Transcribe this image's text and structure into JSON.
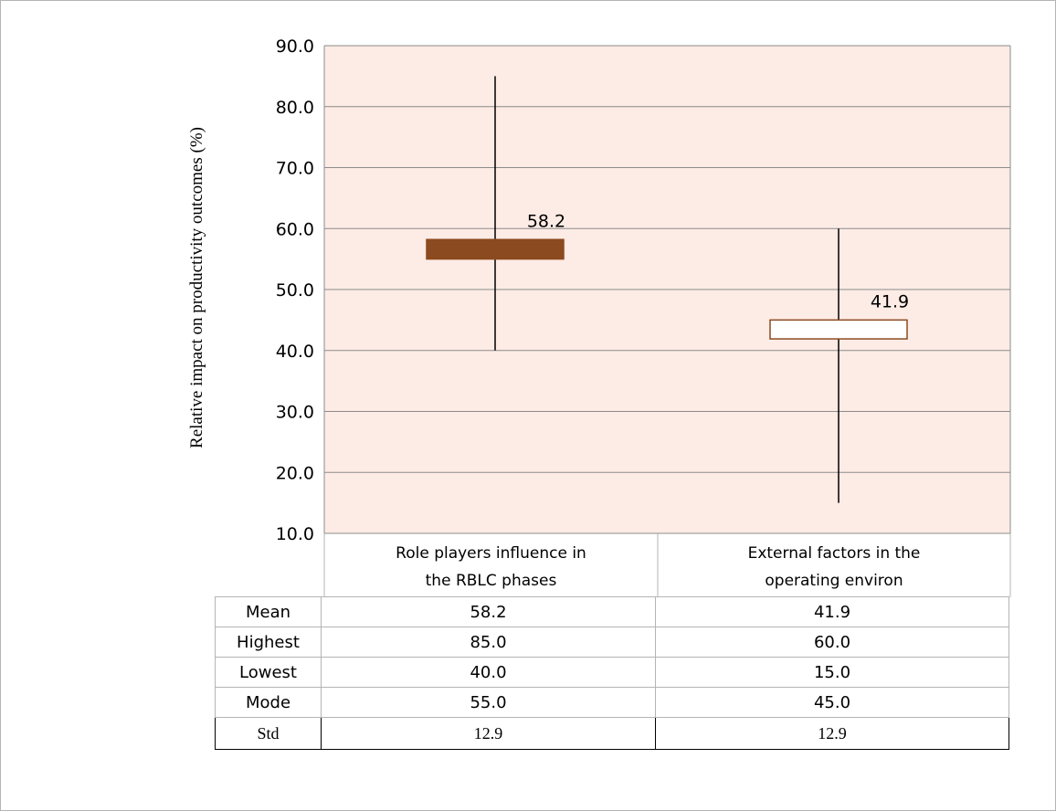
{
  "chart_data": {
    "type": "box",
    "ylabel": "Relative impact on productivity outcomes (%)",
    "ylim": [
      10,
      90
    ],
    "yticks": [
      10,
      20,
      30,
      40,
      50,
      60,
      70,
      80,
      90
    ],
    "grid": true,
    "colors": {
      "plot_background": "#fdebe5",
      "box_fill_1": "#8b4a1f",
      "box_fill_2": "#ffffff",
      "box_stroke": "#8b4a1f"
    },
    "categories": [
      {
        "line1": "Role players influence in",
        "line2": "the RBLC phases",
        "mean": 58.2,
        "high": 85.0,
        "low": 40.0,
        "mode": 55.0,
        "label": "58.2"
      },
      {
        "line1": "External factors in the",
        "line2": "operating environ",
        "mean": 41.9,
        "high": 60.0,
        "low": 15.0,
        "mode": 45.0,
        "label": "41.9"
      }
    ]
  },
  "table": {
    "rows": [
      {
        "name": "Mean",
        "v1": "58.2",
        "v2": "41.9"
      },
      {
        "name": "Highest",
        "v1": "85.0",
        "v2": "60.0"
      },
      {
        "name": "Lowest",
        "v1": "40.0",
        "v2": "15.0"
      },
      {
        "name": "Mode",
        "v1": "55.0",
        "v2": "45.0"
      }
    ],
    "std": {
      "name": "Std",
      "v1": "12.9",
      "v2": "12.9"
    }
  }
}
